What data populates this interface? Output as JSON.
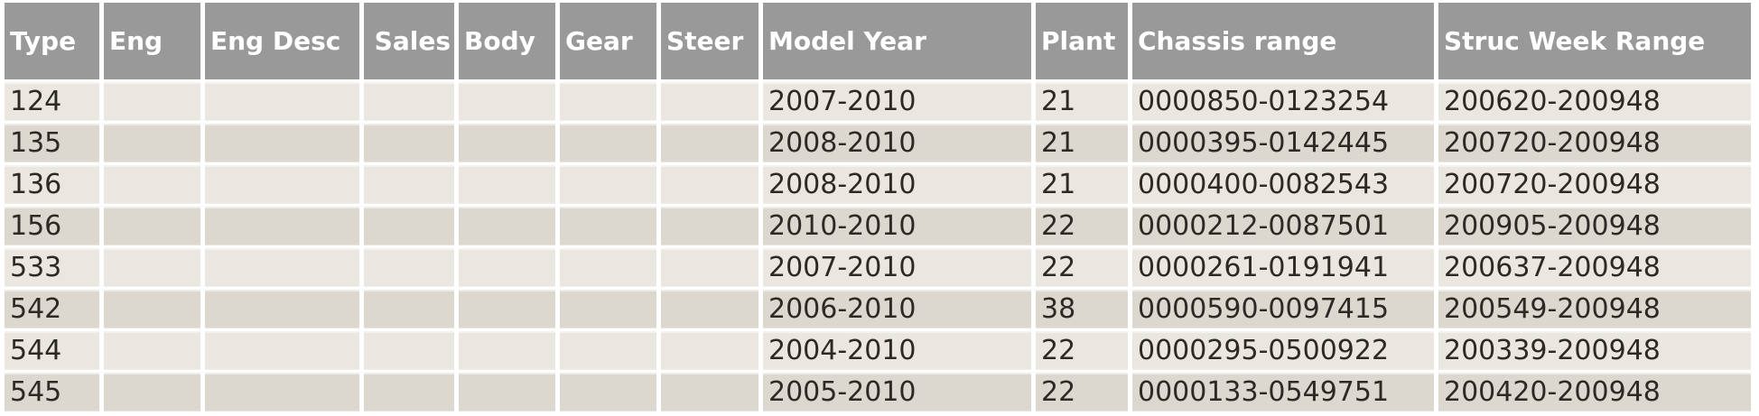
{
  "colors": {
    "header_bg": "#999999",
    "header_text": "#ffffff",
    "row_light": "#eae7e1",
    "row_dark": "#dcd8cf",
    "cell_text": "#2d2a26",
    "page_bg": "#ffffff"
  },
  "table": {
    "columns": [
      "Type",
      "Eng",
      "Eng Desc",
      "Sales",
      "Body",
      "Gear",
      "Steer",
      "Model Year",
      "Plant",
      "Chassis range",
      "Struc Week Range"
    ],
    "rows": [
      [
        "124",
        "",
        "",
        "",
        "",
        "",
        "",
        "2007-2010",
        "21",
        "0000850-0123254",
        "200620-200948"
      ],
      [
        "135",
        "",
        "",
        "",
        "",
        "",
        "",
        "2008-2010",
        "21",
        "0000395-0142445",
        "200720-200948"
      ],
      [
        "136",
        "",
        "",
        "",
        "",
        "",
        "",
        "2008-2010",
        "21",
        "0000400-0082543",
        "200720-200948"
      ],
      [
        "156",
        "",
        "",
        "",
        "",
        "",
        "",
        "2010-2010",
        "22",
        "0000212-0087501",
        "200905-200948"
      ],
      [
        "533",
        "",
        "",
        "",
        "",
        "",
        "",
        "2007-2010",
        "22",
        "0000261-0191941",
        "200637-200948"
      ],
      [
        "542",
        "",
        "",
        "",
        "",
        "",
        "",
        "2006-2010",
        "38",
        "0000590-0097415",
        "200549-200948"
      ],
      [
        "544",
        "",
        "",
        "",
        "",
        "",
        "",
        "2004-2010",
        "22",
        "0000295-0500922",
        "200339-200948"
      ],
      [
        "545",
        "",
        "",
        "",
        "",
        "",
        "",
        "2005-2010",
        "22",
        "0000133-0549751",
        "200420-200948"
      ]
    ]
  }
}
